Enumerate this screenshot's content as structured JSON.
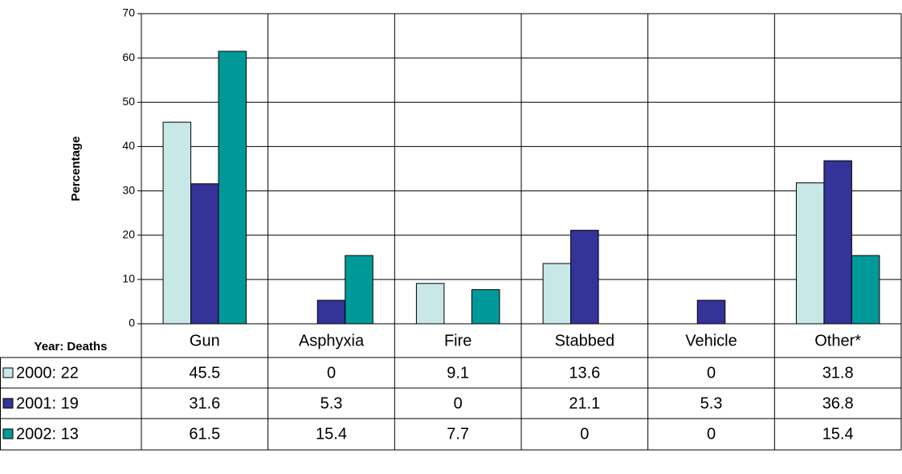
{
  "chart_data": {
    "type": "bar",
    "y_label": "Percentage",
    "table_header": "Year: Deaths",
    "categories": [
      "Gun",
      "Asphyxia",
      "Fire",
      "Stabbed",
      "Vehicle",
      "Other*"
    ],
    "series": [
      {
        "name": "2000: 22",
        "color": "#c8e8e8",
        "values": [
          45.5,
          0,
          9.1,
          13.6,
          0,
          31.8
        ]
      },
      {
        "name": "2001: 19",
        "color": "#333399",
        "values": [
          31.6,
          5.3,
          0,
          21.1,
          5.3,
          36.8
        ]
      },
      {
        "name": "2002: 13",
        "color": "#009999",
        "values": [
          61.5,
          15.4,
          7.7,
          0,
          0,
          15.4
        ]
      }
    ],
    "ylim": [
      0,
      70
    ],
    "yticks": [
      0,
      10,
      20,
      30,
      40,
      50,
      60,
      70
    ],
    "grid": true
  }
}
